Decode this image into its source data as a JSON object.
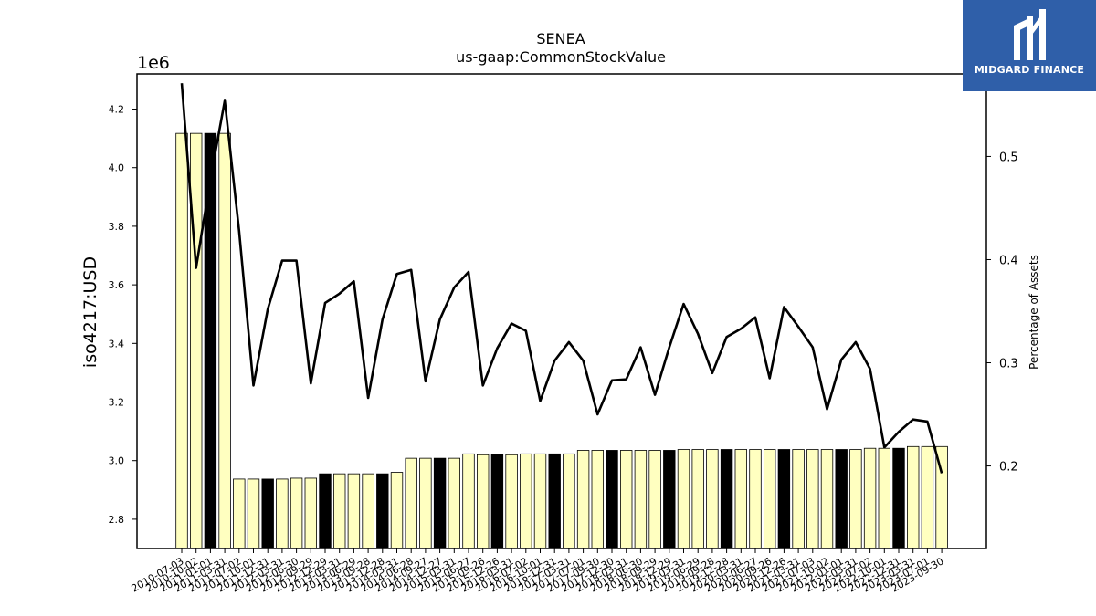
{
  "chart_data": {
    "type": "bar",
    "title": "SENEA",
    "subtitle": "us-gaap:CommonStockValue",
    "ylabel": "iso4217:USD",
    "y2label": "Percentage of Assets",
    "y_offset_label": "1e6",
    "ylim": [
      2.7,
      4.32
    ],
    "y2lim": [
      0.12,
      0.58
    ],
    "yticks": [
      "2.8",
      "3.0",
      "3.2",
      "3.4",
      "3.6",
      "3.8",
      "4.0",
      "4.2"
    ],
    "y2ticks": [
      "0.2",
      "0.3",
      "0.4",
      "0.5"
    ],
    "categories": [
      "2010-07-03",
      "2010-10-02",
      "2011-01-01",
      "2011-03-31",
      "2011-07-02",
      "2011-10-01",
      "2011-12-31",
      "2012-03-31",
      "2012-06-30",
      "2012-09-29",
      "2012-12-29",
      "2013-03-31",
      "2013-06-29",
      "2013-09-28",
      "2013-12-28",
      "2014-03-31",
      "2014-06-28",
      "2014-09-27",
      "2014-12-27",
      "2015-03-31",
      "2015-06-27",
      "2015-09-26",
      "2015-12-26",
      "2016-03-31",
      "2016-07-02",
      "2016-10-01",
      "2016-12-31",
      "2017-03-31",
      "2017-07-01",
      "2017-09-30",
      "2017-12-30",
      "2018-03-31",
      "2018-06-30",
      "2018-09-29",
      "2018-12-29",
      "2019-03-31",
      "2019-06-29",
      "2019-09-28",
      "2019-12-28",
      "2020-03-31",
      "2020-06-27",
      "2020-09-26",
      "2020-12-26",
      "2021-03-31",
      "2021-07-03",
      "2021-10-02",
      "2022-01-01",
      "2022-03-31",
      "2022-07-02",
      "2022-10-01",
      "2022-12-31",
      "2023-03-31",
      "2023-07-01",
      "2023-09-30"
    ],
    "series": [
      {
        "values": [
          4.117,
          4.117,
          4.117,
          4.117,
          2.937,
          2.937,
          2.937,
          2.937,
          2.94,
          2.94,
          2.955,
          2.955,
          2.955,
          2.955,
          2.955,
          2.96,
          3.008,
          3.008,
          3.008,
          3.008,
          3.023,
          3.02,
          3.02,
          3.02,
          3.023,
          3.023,
          3.023,
          3.023,
          3.035,
          3.035,
          3.035,
          3.035,
          3.035,
          3.035,
          3.035,
          3.038,
          3.038,
          3.038,
          3.038,
          3.038,
          3.038,
          3.038,
          3.038,
          3.038,
          3.038,
          3.038,
          3.038,
          3.038,
          3.042,
          3.042,
          3.042,
          3.048,
          3.048,
          3.048
        ]
      },
      {
        "axis": "right",
        "values": [
          0.571,
          0.392,
          0.478,
          0.554,
          0.428,
          0.278,
          0.352,
          0.399,
          0.399,
          0.28,
          0.358,
          0.367,
          0.379,
          0.266,
          0.342,
          0.386,
          0.39,
          0.282,
          0.342,
          0.373,
          0.388,
          0.278,
          0.314,
          0.338,
          0.331,
          0.263,
          0.302,
          0.32,
          0.302,
          0.25,
          0.283,
          0.284,
          0.315,
          0.269,
          0.315,
          0.357,
          0.328,
          0.29,
          0.325,
          0.333,
          0.344,
          0.285,
          0.354,
          0.335,
          0.315,
          0.255,
          0.303,
          0.32,
          0.294,
          0.218,
          0.233,
          0.245,
          0.243,
          0.193
        ]
      }
    ],
    "bar_colors": [
      "#ffffc0",
      "#ffffc0",
      "#000000",
      "#ffffc0",
      "#ffffc0",
      "#ffffc0",
      "#000000",
      "#ffffc0",
      "#ffffc0",
      "#ffffc0",
      "#000000",
      "#ffffc0",
      "#ffffc0",
      "#ffffc0",
      "#000000",
      "#ffffc0",
      "#ffffc0",
      "#ffffc0",
      "#000000",
      "#ffffc0",
      "#ffffc0",
      "#ffffc0",
      "#000000",
      "#ffffc0",
      "#ffffc0",
      "#ffffc0",
      "#000000",
      "#ffffc0",
      "#ffffc0",
      "#ffffc0",
      "#000000",
      "#ffffc0",
      "#ffffc0",
      "#ffffc0",
      "#000000",
      "#ffffc0",
      "#ffffc0",
      "#ffffc0",
      "#000000",
      "#ffffc0",
      "#ffffc0",
      "#ffffc0",
      "#000000",
      "#ffffc0",
      "#ffffc0",
      "#ffffc0",
      "#000000",
      "#ffffc0",
      "#ffffc0",
      "#ffffc0",
      "#000000",
      "#ffffc0",
      "#ffffc0",
      "#ffffc0"
    ],
    "line_color": "#000000",
    "grid": false
  },
  "logo": {
    "text": "MIDGARD FINANCE",
    "background": "#2f5fa9"
  }
}
